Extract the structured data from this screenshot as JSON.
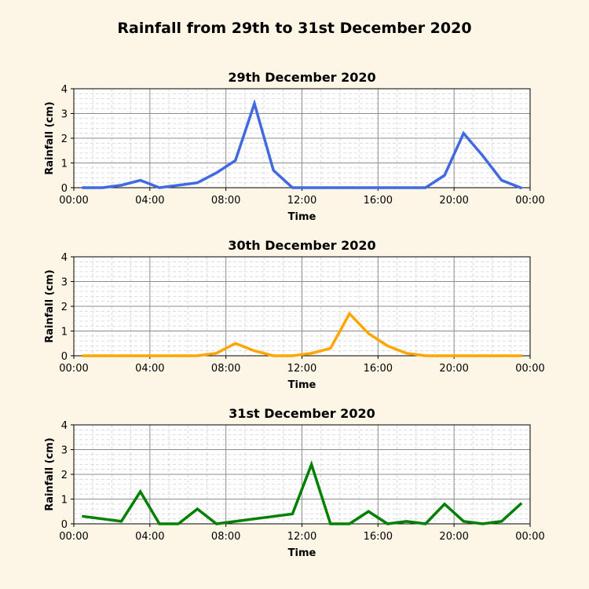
{
  "figure": {
    "title": "Rainfall from 29th to 31st December 2020",
    "background": "#fdf5e6"
  },
  "chart_data": [
    {
      "type": "line",
      "title": "29th December 2020",
      "xlabel": "Time",
      "ylabel": "Rainfall (cm)",
      "xlim": [
        "00:00",
        "24:00"
      ],
      "ylim": [
        0,
        4
      ],
      "x_ticks": [
        "00:00",
        "04:00",
        "08:00",
        "12:00",
        "16:00",
        "20:00",
        "00:00"
      ],
      "y_ticks": [
        "0",
        "1",
        "2",
        "3",
        "4"
      ],
      "grid": true,
      "color": "#4169e1",
      "x": [
        "00:30",
        "01:30",
        "02:30",
        "03:30",
        "04:30",
        "05:30",
        "06:30",
        "07:30",
        "08:30",
        "09:30",
        "10:30",
        "11:30",
        "12:30",
        "13:30",
        "14:30",
        "15:30",
        "16:30",
        "17:30",
        "18:30",
        "19:30",
        "20:30",
        "21:30",
        "22:30",
        "23:30"
      ],
      "values": [
        0,
        0,
        0.1,
        0.3,
        0,
        0.1,
        0.2,
        0.6,
        1.1,
        3.4,
        0.7,
        0,
        0,
        0,
        0,
        0,
        0,
        0,
        0,
        0.5,
        2.2,
        1.3,
        0.3,
        0
      ]
    },
    {
      "type": "line",
      "title": "30th December 2020",
      "xlabel": "Time",
      "ylabel": "Rainfall (cm)",
      "xlim": [
        "00:00",
        "24:00"
      ],
      "ylim": [
        0,
        4
      ],
      "x_ticks": [
        "00:00",
        "04:00",
        "08:00",
        "12:00",
        "16:00",
        "20:00",
        "00:00"
      ],
      "y_ticks": [
        "0",
        "1",
        "2",
        "3",
        "4"
      ],
      "grid": true,
      "color": "#ffa500",
      "x": [
        "00:30",
        "01:30",
        "02:30",
        "03:30",
        "04:30",
        "05:30",
        "06:30",
        "07:30",
        "08:30",
        "09:30",
        "10:30",
        "11:30",
        "12:30",
        "13:30",
        "14:30",
        "15:30",
        "16:30",
        "17:30",
        "18:30",
        "19:30",
        "20:30",
        "21:30",
        "22:30",
        "23:30"
      ],
      "values": [
        0,
        0,
        0,
        0,
        0,
        0,
        0,
        0.1,
        0.5,
        0.2,
        0,
        0,
        0.1,
        0.3,
        1.7,
        0.9,
        0.4,
        0.1,
        0,
        0,
        0,
        0,
        0,
        0
      ]
    },
    {
      "type": "line",
      "title": "31st December 2020",
      "xlabel": "Time",
      "ylabel": "Rainfall (cm)",
      "xlim": [
        "00:00",
        "24:00"
      ],
      "ylim": [
        0,
        4
      ],
      "x_ticks": [
        "00:00",
        "04:00",
        "08:00",
        "12:00",
        "16:00",
        "20:00",
        "00:00"
      ],
      "y_ticks": [
        "0",
        "1",
        "2",
        "3",
        "4"
      ],
      "grid": true,
      "color": "#008000",
      "x": [
        "00:30",
        "01:30",
        "02:30",
        "03:30",
        "04:30",
        "05:30",
        "06:30",
        "07:30",
        "08:30",
        "09:30",
        "10:30",
        "11:30",
        "12:30",
        "13:30",
        "14:30",
        "15:30",
        "16:30",
        "17:30",
        "18:30",
        "19:30",
        "20:30",
        "21:30",
        "22:30",
        "23:30"
      ],
      "values": [
        0.3,
        0.2,
        0.1,
        1.3,
        0,
        0,
        0.6,
        0,
        0.1,
        0.2,
        0.3,
        0.4,
        2.4,
        0,
        0,
        0.5,
        0,
        0.1,
        0,
        0.8,
        0.1,
        0,
        0.1,
        0.8
      ]
    }
  ]
}
